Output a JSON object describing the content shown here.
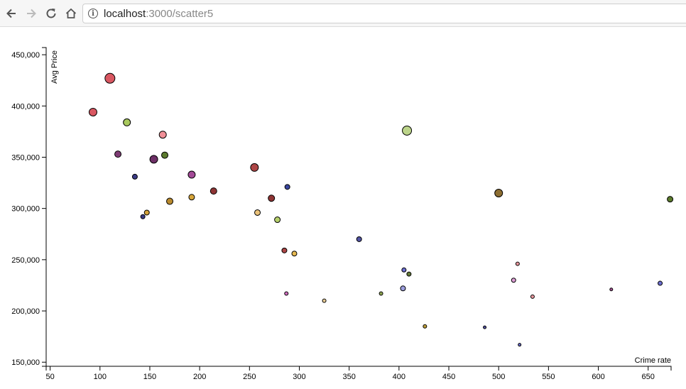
{
  "browser": {
    "url_host": "localhost",
    "url_path": ":3000/scatter5"
  },
  "chart_data": {
    "type": "scatter",
    "title": "",
    "xlabel": "Crime rate",
    "ylabel": "Avg Price",
    "xlim": [
      46,
      673
    ],
    "ylim": [
      146000,
      457000
    ],
    "x_ticks": [
      50,
      100,
      150,
      200,
      250,
      300,
      350,
      400,
      450,
      500,
      550,
      600,
      650
    ],
    "y_ticks": [
      150000,
      200000,
      250000,
      300000,
      350000,
      400000,
      450000
    ],
    "x_tick_labels": [
      "50",
      "100",
      "150",
      "200",
      "250",
      "300",
      "350",
      "400",
      "450",
      "500",
      "550",
      "600",
      "650"
    ],
    "y_tick_labels": [
      "150,000",
      "200,000",
      "250,000",
      "300,000",
      "350,000",
      "400,000",
      "450,000"
    ],
    "grid": false,
    "points": [
      {
        "x": 110,
        "y": 427000,
        "r": 7,
        "color": "#d95761"
      },
      {
        "x": 93,
        "y": 394000,
        "r": 5.5,
        "color": "#d95761"
      },
      {
        "x": 127,
        "y": 384000,
        "r": 5,
        "color": "#a9c95e"
      },
      {
        "x": 163,
        "y": 372000,
        "r": 5,
        "color": "#f08f97"
      },
      {
        "x": 118,
        "y": 353000,
        "r": 4.5,
        "color": "#7e3b74"
      },
      {
        "x": 154,
        "y": 348000,
        "r": 5.5,
        "color": "#6d2f66"
      },
      {
        "x": 165,
        "y": 352000,
        "r": 4.5,
        "color": "#5b7a2d"
      },
      {
        "x": 135,
        "y": 331000,
        "r": 3.5,
        "color": "#3b3b86"
      },
      {
        "x": 192,
        "y": 333000,
        "r": 5,
        "color": "#a34a97"
      },
      {
        "x": 255,
        "y": 340000,
        "r": 5.5,
        "color": "#ad4646"
      },
      {
        "x": 288,
        "y": 321000,
        "r": 3.5,
        "color": "#3b47a0"
      },
      {
        "x": 214,
        "y": 317000,
        "r": 4.5,
        "color": "#8e3434"
      },
      {
        "x": 272,
        "y": 310000,
        "r": 4.5,
        "color": "#8e3434"
      },
      {
        "x": 192,
        "y": 311000,
        "r": 4,
        "color": "#d5a43a"
      },
      {
        "x": 170,
        "y": 307000,
        "r": 4.5,
        "color": "#b98a2e"
      },
      {
        "x": 147,
        "y": 296000,
        "r": 3.5,
        "color": "#d5a43a"
      },
      {
        "x": 143,
        "y": 292000,
        "r": 3,
        "color": "#3b3b86"
      },
      {
        "x": 258,
        "y": 296000,
        "r": 4,
        "color": "#eac27a"
      },
      {
        "x": 278,
        "y": 289000,
        "r": 4,
        "color": "#b5cf6b"
      },
      {
        "x": 408,
        "y": 376000,
        "r": 6.5,
        "color": "#bcd48a"
      },
      {
        "x": 500,
        "y": 315000,
        "r": 5.5,
        "color": "#8c6d31"
      },
      {
        "x": 672,
        "y": 309000,
        "r": 4,
        "color": "#5b7a2d"
      },
      {
        "x": 360,
        "y": 270000,
        "r": 3.5,
        "color": "#5254a3"
      },
      {
        "x": 285,
        "y": 259000,
        "r": 3.5,
        "color": "#ad4646"
      },
      {
        "x": 295,
        "y": 256000,
        "r": 3.5,
        "color": "#e7ba52"
      },
      {
        "x": 405,
        "y": 240000,
        "r": 3,
        "color": "#6b6ecf"
      },
      {
        "x": 410,
        "y": 236000,
        "r": 3,
        "color": "#637939"
      },
      {
        "x": 519,
        "y": 246000,
        "r": 2.5,
        "color": "#e7969c"
      },
      {
        "x": 515,
        "y": 230000,
        "r": 3,
        "color": "#de9ed6"
      },
      {
        "x": 404,
        "y": 222000,
        "r": 3.5,
        "color": "#9c9ede"
      },
      {
        "x": 382,
        "y": 217000,
        "r": 2.5,
        "color": "#8ca252"
      },
      {
        "x": 287,
        "y": 217000,
        "r": 2.5,
        "color": "#ce6dbd"
      },
      {
        "x": 325,
        "y": 210000,
        "r": 2.5,
        "color": "#e7cb94"
      },
      {
        "x": 534,
        "y": 214000,
        "r": 2.5,
        "color": "#e7969c"
      },
      {
        "x": 426,
        "y": 185000,
        "r": 2.5,
        "color": "#bd9e39"
      },
      {
        "x": 486,
        "y": 184000,
        "r": 2,
        "color": "#5254a3"
      },
      {
        "x": 521,
        "y": 167000,
        "r": 2,
        "color": "#6b6ecf"
      },
      {
        "x": 613,
        "y": 221000,
        "r": 2,
        "color": "#a55194"
      },
      {
        "x": 662,
        "y": 227000,
        "r": 3,
        "color": "#6b6ecf"
      }
    ]
  }
}
